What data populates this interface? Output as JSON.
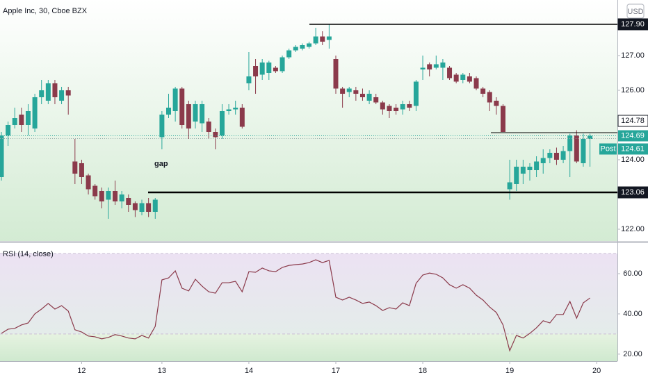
{
  "header": {
    "title": "Apple Inc, 30, Cboe BZX",
    "currency": "USD"
  },
  "chart_data": [
    {
      "type": "candlestick",
      "up_color": "#26a69a",
      "down_color": "#8b3a4b",
      "open": [
        123.5,
        124.7,
        125.0,
        125.3,
        125.0,
        124.9,
        125.8,
        125.7,
        126.2,
        125.7,
        126.0,
        123.95,
        123.9,
        123.55,
        123.25,
        123.1,
        122.85,
        123.1,
        122.8,
        122.9,
        122.75,
        122.5,
        122.75,
        122.5,
        124.65,
        125.3,
        125.4,
        126.05,
        125.6,
        125.1,
        125.05,
        125.1,
        124.8,
        124.7,
        125.4,
        125.45,
        125.5,
        126.2,
        126.7,
        126.45,
        126.5,
        126.65,
        126.55,
        126.95,
        127.15,
        127.2,
        127.25,
        127.35,
        127.55,
        127.45,
        126.9,
        126.05,
        125.95,
        126.0,
        125.9,
        125.7,
        125.8,
        125.65,
        125.55,
        125.5,
        125.45,
        125.6,
        125.55,
        126.6,
        126.75,
        126.65,
        126.65,
        126.65,
        126.45,
        126.3,
        126.4,
        126.35,
        126.05,
        125.95,
        125.7,
        125.55,
        123.15,
        123.3,
        123.6,
        123.7,
        123.7,
        123.9,
        124.05,
        124.2,
        124.0,
        124.25,
        124.7,
        123.9,
        124.6,
        null
      ],
      "high": [
        124.8,
        125.1,
        125.5,
        125.5,
        125.6,
        125.9,
        126.3,
        126.3,
        126.3,
        126.1,
        126.1,
        124.6,
        124.0,
        123.6,
        123.3,
        123.2,
        123.2,
        123.4,
        123.1,
        123.0,
        122.8,
        122.85,
        122.9,
        122.9,
        125.4,
        125.9,
        126.1,
        126.1,
        125.7,
        125.7,
        125.7,
        125.2,
        124.9,
        125.6,
        125.6,
        125.7,
        125.6,
        127.1,
        126.9,
        126.9,
        126.85,
        126.7,
        127.0,
        127.2,
        127.3,
        127.35,
        127.4,
        127.8,
        127.7,
        127.9,
        127.0,
        126.1,
        126.1,
        126.1,
        126.05,
        126.0,
        125.9,
        125.7,
        125.6,
        125.6,
        125.7,
        125.7,
        126.3,
        127.0,
        126.8,
        127.0,
        126.9,
        126.7,
        126.5,
        126.5,
        126.5,
        126.4,
        126.1,
        126.0,
        125.8,
        125.6,
        124.0,
        124.0,
        124.0,
        123.9,
        124.1,
        124.3,
        124.3,
        124.35,
        124.4,
        124.75,
        124.85,
        124.75,
        124.75,
        null
      ],
      "low": [
        123.4,
        124.4,
        124.9,
        124.8,
        124.7,
        124.8,
        125.6,
        125.6,
        125.6,
        125.6,
        125.3,
        123.3,
        123.3,
        123.0,
        122.85,
        122.6,
        122.3,
        122.7,
        122.6,
        122.5,
        122.35,
        122.4,
        122.35,
        122.3,
        124.3,
        125.2,
        125.1,
        124.9,
        124.6,
        124.9,
        124.8,
        124.6,
        124.3,
        124.6,
        125.3,
        125.3,
        124.9,
        126.0,
        125.9,
        126.3,
        126.3,
        126.5,
        126.5,
        126.9,
        127.1,
        127.15,
        127.2,
        127.3,
        127.3,
        127.2,
        125.9,
        125.5,
        125.8,
        125.7,
        125.7,
        125.6,
        125.6,
        125.3,
        125.2,
        125.3,
        125.3,
        125.4,
        125.4,
        126.3,
        126.4,
        126.6,
        126.3,
        126.3,
        126.2,
        126.2,
        126.2,
        126.0,
        125.8,
        125.4,
        125.3,
        124.8,
        122.85,
        123.1,
        123.3,
        123.4,
        123.5,
        123.6,
        123.9,
        123.85,
        123.9,
        123.5,
        123.9,
        123.8,
        123.8,
        null
      ],
      "close": [
        124.7,
        125.0,
        125.2,
        125.0,
        125.4,
        125.8,
        126.0,
        126.2,
        125.8,
        126.0,
        125.85,
        123.6,
        123.5,
        123.15,
        122.95,
        122.8,
        123.1,
        122.8,
        123.0,
        122.7,
        122.55,
        122.75,
        122.5,
        122.85,
        125.3,
        125.5,
        126.05,
        125.0,
        124.9,
        125.6,
        125.6,
        124.8,
        124.65,
        125.4,
        125.45,
        125.5,
        124.95,
        126.4,
        126.4,
        126.8,
        126.8,
        126.55,
        126.95,
        127.15,
        127.25,
        127.3,
        127.35,
        127.55,
        127.4,
        127.55,
        126.05,
        125.9,
        126.05,
        125.9,
        125.8,
        125.9,
        125.65,
        125.45,
        125.4,
        125.4,
        125.6,
        125.5,
        126.25,
        126.65,
        126.6,
        126.75,
        126.8,
        126.35,
        126.25,
        126.45,
        126.25,
        126.05,
        125.9,
        125.65,
        125.55,
        124.8,
        123.35,
        123.8,
        123.8,
        123.8,
        123.95,
        124.05,
        124.2,
        124.0,
        124.25,
        124.7,
        123.95,
        124.6,
        124.69,
        null
      ],
      "ylim": [
        121.66,
        128.6
      ],
      "yticks": [
        {
          "value": 122,
          "label": "122.00"
        },
        {
          "value": 124,
          "label": "124.00"
        },
        {
          "value": 126,
          "label": "126.00"
        },
        {
          "value": 127,
          "label": "127.00"
        }
      ],
      "levels": [
        {
          "value": 127.9,
          "label": "127.90"
        },
        {
          "value": 124.78,
          "label": "124.78"
        },
        {
          "value": 123.06,
          "label": "123.06"
        }
      ],
      "last": {
        "value": 124.69,
        "label": "124.69",
        "color": "#26a69a"
      },
      "post": {
        "name": "Post",
        "value": 124.61,
        "label": "124.61",
        "color": "#26a69a"
      },
      "annotations": [
        {
          "text": "gap"
        }
      ]
    },
    {
      "type": "line",
      "title": "RSI (14, close)",
      "color": "#8b3a4b",
      "categories": [
        null,
        null,
        null,
        null,
        null,
        null,
        null,
        null,
        null,
        null,
        null,
        null,
        "12",
        null,
        null,
        null,
        null,
        null,
        null,
        null,
        null,
        null,
        null,
        null,
        "13",
        null,
        null,
        null,
        null,
        null,
        null,
        null,
        null,
        null,
        null,
        null,
        null,
        "14",
        null,
        null,
        null,
        null,
        null,
        null,
        null,
        null,
        null,
        null,
        null,
        null,
        "17",
        null,
        null,
        null,
        null,
        null,
        null,
        null,
        null,
        null,
        null,
        null,
        null,
        "18",
        null,
        null,
        null,
        null,
        null,
        null,
        null,
        null,
        null,
        null,
        null,
        null,
        "19",
        null,
        null,
        null,
        null,
        null,
        null,
        null,
        null,
        null,
        null,
        null,
        null,
        "20"
      ],
      "values": [
        30.3,
        32.4,
        32.8,
        34.5,
        35.5,
        40,
        42.4,
        45.2,
        42.4,
        44.1,
        41.4,
        32.1,
        31,
        29,
        28.6,
        27.6,
        28.3,
        29.7,
        29,
        28,
        27.6,
        29.3,
        28,
        33.8,
        56.9,
        57.9,
        61.4,
        52.8,
        51.4,
        57.2,
        53.8,
        51,
        50.3,
        55.5,
        55.5,
        56.2,
        51,
        61,
        60.7,
        62.8,
        61.4,
        61,
        63.1,
        64.1,
        64.5,
        64.8,
        65.5,
        66.9,
        65.5,
        66.6,
        48.3,
        46.9,
        48.3,
        46.9,
        45.2,
        45.9,
        44.1,
        41.7,
        43.1,
        42.4,
        45.5,
        44.1,
        55.2,
        59.3,
        60.3,
        59.7,
        57.9,
        54.5,
        52.8,
        54.5,
        52.8,
        49.3,
        46.9,
        43.4,
        40.7,
        34.5,
        21.7,
        29.3,
        28,
        30.3,
        33.1,
        36.6,
        35.5,
        39.7,
        39.7,
        46.2,
        37.9,
        45.5,
        47.9,
        null
      ],
      "ylim": [
        16.5,
        75.2
      ],
      "yticks": [
        {
          "value": 20,
          "label": "20.00"
        },
        {
          "value": 40,
          "label": "40.00"
        },
        {
          "value": 60,
          "label": "60.00"
        }
      ],
      "band": [
        30,
        70
      ]
    }
  ]
}
